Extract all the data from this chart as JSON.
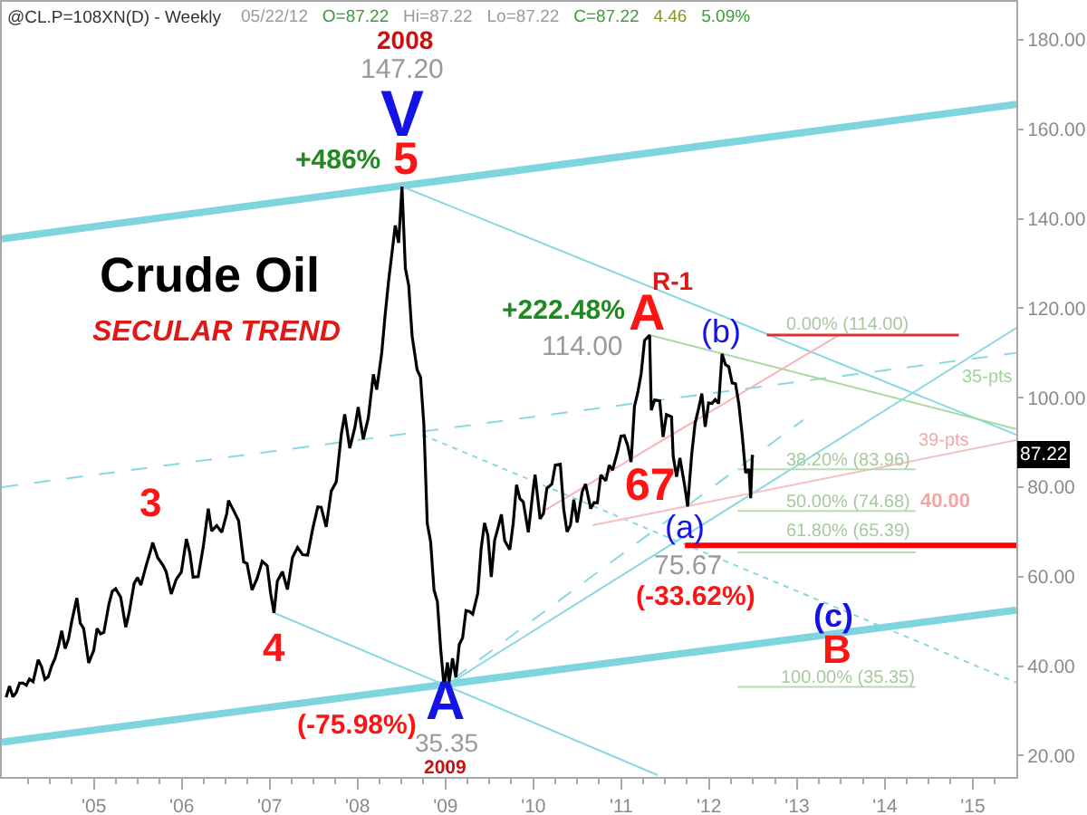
{
  "chart_data": {
    "type": "line",
    "title": "@CL.P=108XN(D) - Weekly",
    "subtitle": "05/22/12  O=87.22  Hi=87.22  Lo=87.22  C=87.22  4.46  5.09%",
    "xlim": [
      "2003-12-15",
      "2015-07-01"
    ],
    "xticks": [
      {
        "value": "2004-04",
        "label": null
      },
      {
        "value": "2004-07",
        "label": null
      },
      {
        "value": "2004-10",
        "label": null
      },
      {
        "value": "2005",
        "label": "'05"
      },
      {
        "value": "2005-04",
        "label": null
      },
      {
        "value": "2005-07",
        "label": null
      },
      {
        "value": "2005-10",
        "label": null
      },
      {
        "value": "2006",
        "label": "'06"
      },
      {
        "value": "2006-04",
        "label": null
      },
      {
        "value": "2006-07",
        "label": null
      },
      {
        "value": "2006-10",
        "label": null
      },
      {
        "value": "2007",
        "label": "'07"
      },
      {
        "value": "2007-04",
        "label": null
      },
      {
        "value": "2007-07",
        "label": null
      },
      {
        "value": "2007-10",
        "label": null
      },
      {
        "value": "2008",
        "label": "'08"
      },
      {
        "value": "2008-04",
        "label": null
      },
      {
        "value": "2008-07",
        "label": null
      },
      {
        "value": "2008-10",
        "label": null
      },
      {
        "value": "2009",
        "label": "'09"
      },
      {
        "value": "2009-04",
        "label": null
      },
      {
        "value": "2009-07",
        "label": null
      },
      {
        "value": "2009-10",
        "label": null
      },
      {
        "value": "2010",
        "label": "'10"
      },
      {
        "value": "2010-04",
        "label": null
      },
      {
        "value": "2010-07",
        "label": null
      },
      {
        "value": "2010-10",
        "label": null
      },
      {
        "value": "2011",
        "label": "'11"
      },
      {
        "value": "2011-04",
        "label": null
      },
      {
        "value": "2011-07",
        "label": null
      },
      {
        "value": "2011-10",
        "label": null
      },
      {
        "value": "2012",
        "label": "'12"
      },
      {
        "value": "2012-04",
        "label": null
      },
      {
        "value": "2012-07",
        "label": null
      },
      {
        "value": "2012-10",
        "label": null
      },
      {
        "value": "2013",
        "label": "'13"
      },
      {
        "value": "2013-04",
        "label": null
      },
      {
        "value": "2013-07",
        "label": null
      },
      {
        "value": "2013-10",
        "label": null
      },
      {
        "value": "2014",
        "label": "'14"
      },
      {
        "value": "2014-04",
        "label": null
      },
      {
        "value": "2014-07",
        "label": null
      },
      {
        "value": "2014-10",
        "label": null
      },
      {
        "value": "2015",
        "label": "'15"
      },
      {
        "value": "2015-04",
        "label": null
      }
    ],
    "ylim": [
      15.2,
      188.5
    ],
    "yticks": [
      {
        "value": 20,
        "label": "20.00"
      },
      {
        "value": 40,
        "label": "40.00"
      },
      {
        "value": 60,
        "label": "60.00"
      },
      {
        "value": 80,
        "label": "80.00"
      },
      {
        "value": 100,
        "label": "100.00"
      },
      {
        "value": 120,
        "label": "120.00"
      },
      {
        "value": 140,
        "label": "140.00"
      },
      {
        "value": 160,
        "label": "160.00"
      },
      {
        "value": 180,
        "label": "180.00"
      }
    ],
    "marker": "none",
    "series": [
      {
        "color": "#7fd5de",
        "x": [
          "2003-12-15",
          "2015-07-01"
        ],
        "values": [
          135.5,
          165.6
        ]
      },
      {
        "color": "#7fd5de",
        "x": [
          "2003-12-15",
          "2015-07-01"
        ],
        "values": [
          23.0,
          52.5
        ]
      },
      {
        "color": "#8ad8e1",
        "x": [
          "2008-07-04",
          "2015-07-01"
        ],
        "values": [
          147.2,
          91.7
        ]
      },
      {
        "color": "#8ad8e1",
        "line_style": "dashed",
        "x": [
          "2003-12-15",
          "2015-07-01"
        ],
        "values": [
          80.0,
          110.0
        ]
      },
      {
        "color": "#8ad8e1",
        "line_style": "dotted",
        "x": [
          "2008-09-26",
          "2015-07-01"
        ],
        "values": [
          91.7,
          36.3
        ]
      },
      {
        "color": "#8ad8e1",
        "x": [
          "2007-01-19",
          "2011-06-02"
        ],
        "values": [
          51.9,
          15.6
        ]
      },
      {
        "color": "#8ad8e1",
        "x": [
          "2008-12-26",
          "2015-07-01"
        ],
        "values": [
          35.35,
          115.6
        ]
      },
      {
        "color": "#8ad8e1",
        "line_style": "dashed",
        "x": [
          "2009-02-02",
          "2013-01-26"
        ],
        "values": [
          37.1,
          95.0
        ]
      },
      {
        "color": "#a8d8a0",
        "x": [
          "2011-04-29",
          "2015-07-01"
        ],
        "values": [
          114.0,
          93.0
        ]
      },
      {
        "color": "#f6b4b4",
        "x": [
          "2010-02-14",
          "2013-06-25"
        ],
        "values": [
          74.7,
          114.0
        ]
      },
      {
        "color": "#f6c0c0",
        "x": [
          "2010-09-04",
          "2015-07-01"
        ],
        "values": [
          71.5,
          90.5
        ]
      },
      {
        "color": "#e03030",
        "x": [
          "2012-08-28",
          "2014-11-04"
        ],
        "values": [
          114.0,
          114.0
        ]
      },
      {
        "color": "#b8dcb0",
        "x": [
          "2012-04-28",
          "2014-05-08"
        ],
        "values": [
          83.96,
          83.96
        ]
      },
      {
        "color": "#b8dcb0",
        "x": [
          "2012-04-28",
          "2014-05-08"
        ],
        "values": [
          74.68,
          74.68
        ]
      },
      {
        "color": "#b8dcb0",
        "x": [
          "2012-04-28",
          "2014-05-08"
        ],
        "values": [
          65.39,
          65.39
        ]
      },
      {
        "color": "#b8dcb0",
        "x": [
          "2012-04-28",
          "2014-05-08"
        ],
        "values": [
          35.35,
          35.35
        ]
      },
      {
        "color": "#ff0000",
        "x": [
          "2011-09-23",
          "2015-07-01"
        ],
        "values": [
          67.0,
          67.0
        ]
      },
      {
        "color": "#000000",
        "x": [
          "2004-01-02",
          "2004-01-16",
          "2004-01-30",
          "2004-02-13",
          "2004-02-27",
          "2004-03-12",
          "2004-03-26",
          "2004-04-08",
          "2004-04-23",
          "2004-05-14",
          "2004-05-28",
          "2004-06-11",
          "2004-06-25",
          "2004-07-09",
          "2004-07-23",
          "2004-08-06",
          "2004-08-20",
          "2004-09-03",
          "2004-09-17",
          "2004-10-01",
          "2004-10-22",
          "2004-11-05",
          "2004-11-19",
          "2004-12-10",
          "2004-12-31",
          "2005-01-14",
          "2005-01-28",
          "2005-02-11",
          "2005-03-04",
          "2005-03-18",
          "2005-04-01",
          "2005-04-22",
          "2005-05-13",
          "2005-05-27",
          "2005-06-17",
          "2005-07-01",
          "2005-07-15",
          "2005-08-05",
          "2005-08-26",
          "2005-09-02",
          "2005-09-23",
          "2005-10-14",
          "2005-10-28",
          "2005-11-18",
          "2005-12-09",
          "2005-12-30",
          "2006-01-20",
          "2006-02-03",
          "2006-02-17",
          "2006-03-10",
          "2006-03-31",
          "2006-04-21",
          "2006-05-05",
          "2006-05-26",
          "2006-06-16",
          "2006-07-07",
          "2006-07-14",
          "2006-08-04",
          "2006-08-25",
          "2006-09-15",
          "2006-09-29",
          "2006-10-20",
          "2006-11-10",
          "2006-12-01",
          "2006-12-22",
          "2007-01-05",
          "2007-01-19",
          "2007-02-02",
          "2007-02-23",
          "2007-03-16",
          "2007-04-06",
          "2007-04-27",
          "2007-05-18",
          "2007-06-08",
          "2007-06-29",
          "2007-07-20",
          "2007-08-03",
          "2007-08-24",
          "2007-09-14",
          "2007-10-05",
          "2007-10-26",
          "2007-11-09",
          "2007-11-30",
          "2007-12-21",
          "2008-01-04",
          "2008-01-25",
          "2008-02-15",
          "2008-03-07",
          "2008-03-21",
          "2008-04-11",
          "2008-04-25",
          "2008-05-09",
          "2008-05-23",
          "2008-06-06",
          "2008-06-20",
          "2008-07-04",
          "2008-07-18",
          "2008-08-01",
          "2008-08-15",
          "2008-09-05",
          "2008-09-19",
          "2008-10-03",
          "2008-10-17",
          "2008-10-31",
          "2008-11-14",
          "2008-11-28",
          "2008-12-12",
          "2008-12-26",
          "2009-01-09",
          "2009-01-16",
          "2009-01-30",
          "2009-02-13",
          "2009-02-27",
          "2009-03-13",
          "2009-03-27",
          "2009-04-10",
          "2009-04-24",
          "2009-05-15",
          "2009-05-29",
          "2009-06-12",
          "2009-06-26",
          "2009-07-10",
          "2009-07-24",
          "2009-08-07",
          "2009-08-21",
          "2009-09-04",
          "2009-09-25",
          "2009-10-09",
          "2009-10-23",
          "2009-11-06",
          "2009-11-20",
          "2009-12-11",
          "2009-12-31",
          "2010-01-08",
          "2010-01-29",
          "2010-02-12",
          "2010-02-26",
          "2010-03-19",
          "2010-04-02",
          "2010-04-23",
          "2010-05-07",
          "2010-05-21",
          "2010-06-04",
          "2010-06-18",
          "2010-07-02",
          "2010-07-23",
          "2010-08-06",
          "2010-08-27",
          "2010-09-10",
          "2010-09-24",
          "2010-10-08",
          "2010-10-29",
          "2010-11-12",
          "2010-11-26",
          "2010-12-17",
          "2010-12-31",
          "2011-01-14",
          "2011-01-28",
          "2011-02-11",
          "2011-02-25",
          "2011-03-11",
          "2011-03-25",
          "2011-04-08",
          "2011-04-29",
          "2011-05-06",
          "2011-05-20",
          "2011-06-10",
          "2011-06-24",
          "2011-07-08",
          "2011-07-29",
          "2011-08-05",
          "2011-08-19",
          "2011-09-02",
          "2011-09-23",
          "2011-10-04",
          "2011-10-21",
          "2011-11-04",
          "2011-11-18",
          "2011-12-02",
          "2011-12-16",
          "2011-12-30",
          "2012-01-13",
          "2012-01-27",
          "2012-02-10",
          "2012-02-24",
          "2012-03-09",
          "2012-03-23",
          "2012-04-06",
          "2012-04-20",
          "2012-05-04",
          "2012-05-18",
          "2012-06-01",
          "2012-06-15",
          "2012-06-22",
          "2012-06-29"
        ],
        "values": [
          33.0,
          35.5,
          33.1,
          34.1,
          36.2,
          36.2,
          35.7,
          37.1,
          36.5,
          41.4,
          39.9,
          37.0,
          37.6,
          40.0,
          41.7,
          44.4,
          47.9,
          43.9,
          46.0,
          50.1,
          55.2,
          49.6,
          48.4,
          40.7,
          43.5,
          48.4,
          47.2,
          47.5,
          53.8,
          56.7,
          57.3,
          55.4,
          48.7,
          51.9,
          58.5,
          59.8,
          58.1,
          62.3,
          66.1,
          67.6,
          64.2,
          62.6,
          61.1,
          56.1,
          59.4,
          61.0,
          68.4,
          65.4,
          59.9,
          60.0,
          66.6,
          75.2,
          70.2,
          71.4,
          69.9,
          74.1,
          77.0,
          74.8,
          72.5,
          63.3,
          62.9,
          57.0,
          59.6,
          63.4,
          62.4,
          56.3,
          51.9,
          59.0,
          61.1,
          57.1,
          64.3,
          66.5,
          64.9,
          64.8,
          70.7,
          75.6,
          75.5,
          71.1,
          79.1,
          81.2,
          91.9,
          96.3,
          88.7,
          93.3,
          97.9,
          90.7,
          95.5,
          105.2,
          101.8,
          110.1,
          118.5,
          125.9,
          132.2,
          138.5,
          134.6,
          147.2,
          128.9,
          125.1,
          113.8,
          106.2,
          104.6,
          93.9,
          71.9,
          67.8,
          57.0,
          54.4,
          43.6,
          35.35,
          40.8,
          36.5,
          41.7,
          37.5,
          44.8,
          46.3,
          52.4,
          52.2,
          51.6,
          56.3,
          66.3,
          72.0,
          69.2,
          59.9,
          68.1,
          70.9,
          73.9,
          68.0,
          66.0,
          71.8,
          80.5,
          77.4,
          76.7,
          69.9,
          79.4,
          82.8,
          72.9,
          74.1,
          79.7,
          80.7,
          84.9,
          85.1,
          75.1,
          70.0,
          71.5,
          77.2,
          72.1,
          79.0,
          80.7,
          75.2,
          76.5,
          76.5,
          82.7,
          81.4,
          84.9,
          83.8,
          88.0,
          91.4,
          91.5,
          89.3,
          85.6,
          98.0,
          101.2,
          105.4,
          112.8,
          114.0,
          97.2,
          99.5,
          99.3,
          91.2,
          96.2,
          95.7,
          86.9,
          82.3,
          86.5,
          79.9,
          75.67,
          87.4,
          94.3,
          97.4,
          100.9,
          93.5,
          98.8,
          98.7,
          99.6,
          98.7,
          109.8,
          107.4,
          106.9,
          103.3,
          103.1,
          98.5,
          91.5,
          83.2,
          84.0,
          77.5,
          87.22
        ]
      }
    ],
    "annotations": [
      "Crude Oil",
      "SECULAR TREND",
      "2008",
      "147.20",
      {
        "text": "V",
        "x": "2008-07-04",
        "y": 147.2
      },
      {
        "text": "5",
        "x": "2008-07-04",
        "y": 147.2
      },
      {
        "text": "+486%",
        "x": "2008-07-04",
        "y": 147.2
      },
      {
        "text": "3",
        "x": "2005-08-26",
        "y": 66.1
      },
      {
        "text": "4",
        "x": "2007-01-19",
        "y": 51.9
      },
      {
        "text": "A",
        "x": "2008-12-26",
        "y": 35.35
      },
      {
        "text": "(-75.98%)",
        "x": "2008-12-26",
        "y": 35.35
      },
      {
        "text": "35.35",
        "x": "2008-12-26",
        "y": 35.35
      },
      "2009",
      {
        "text": "+222.48%",
        "x": "2011-04-29",
        "y": 114.0
      },
      {
        "text": "R-1",
        "x": "2011-04-29",
        "y": 114.0
      },
      {
        "text": "A",
        "x": "2011-04-29",
        "y": 114.0
      },
      {
        "text": "114.00",
        "x": "2011-04-29",
        "y": 114.0
      },
      {
        "text": "(b)",
        "x": "2012-02-24",
        "y": 109.8
      },
      {
        "text": "(a)",
        "x": "2011-10-04",
        "y": 75.67
      },
      {
        "text": "75.67",
        "x": "2011-10-04",
        "y": 75.67
      },
      {
        "text": "(-33.62%)",
        "x": "2011-10-04",
        "y": 75.67
      },
      {
        "text": "67",
        "x": "2011-04-29",
        "y": 67.0
      },
      {
        "text": "(c)",
        "x": "2013-06-01",
        "y": 47.1
      },
      {
        "text": "B",
        "x": "2013-06-01",
        "y": 47.1
      },
      {
        "text": "0.00% (114.00)",
        "x": "2013-08-01",
        "y": 114.0
      },
      {
        "text": "38.20% (83.96)",
        "x": "2013-08-01",
        "y": 83.96
      },
      {
        "text": "50.00% (74.68)",
        "x": "2013-08-01",
        "y": 74.68
      },
      {
        "text": "61.80% (65.39)",
        "x": "2013-08-01",
        "y": 65.39
      },
      {
        "text": "100.00% (35.35)",
        "x": "2013-08-01",
        "y": 35.35
      },
      "35-pts",
      "39-pts",
      "40.00",
      {
        "text": "87.22",
        "y": 87.22
      }
    ]
  }
}
